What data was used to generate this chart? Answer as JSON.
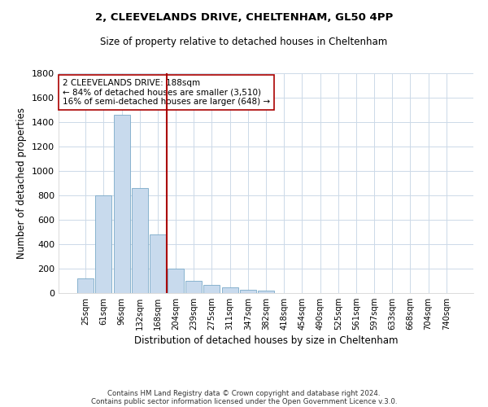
{
  "title": "2, CLEEVELANDS DRIVE, CHELTENHAM, GL50 4PP",
  "subtitle": "Size of property relative to detached houses in Cheltenham",
  "xlabel": "Distribution of detached houses by size in Cheltenham",
  "ylabel": "Number of detached properties",
  "bar_color": "#c8daed",
  "bar_edge_color": "#7aaac8",
  "categories": [
    "25sqm",
    "61sqm",
    "96sqm",
    "132sqm",
    "168sqm",
    "204sqm",
    "239sqm",
    "275sqm",
    "311sqm",
    "347sqm",
    "382sqm",
    "418sqm",
    "454sqm",
    "490sqm",
    "525sqm",
    "561sqm",
    "597sqm",
    "633sqm",
    "668sqm",
    "704sqm",
    "740sqm"
  ],
  "values": [
    120,
    800,
    1460,
    860,
    480,
    200,
    100,
    65,
    45,
    25,
    20,
    0,
    0,
    0,
    0,
    0,
    0,
    0,
    0,
    0,
    0
  ],
  "ylim": [
    0,
    1800
  ],
  "yticks": [
    0,
    200,
    400,
    600,
    800,
    1000,
    1200,
    1400,
    1600,
    1800
  ],
  "vline_x": 4.5,
  "vline_color": "#aa0000",
  "annotation_title": "2 CLEEVELANDS DRIVE: 188sqm",
  "annotation_line1": "← 84% of detached houses are smaller (3,510)",
  "annotation_line2": "16% of semi-detached houses are larger (648) →",
  "annotation_box_color": "#ffffff",
  "annotation_border_color": "#aa0000",
  "footer1": "Contains HM Land Registry data © Crown copyright and database right 2024.",
  "footer2": "Contains public sector information licensed under the Open Government Licence v.3.0.",
  "background_color": "#ffffff",
  "grid_color": "#ccd9e8"
}
